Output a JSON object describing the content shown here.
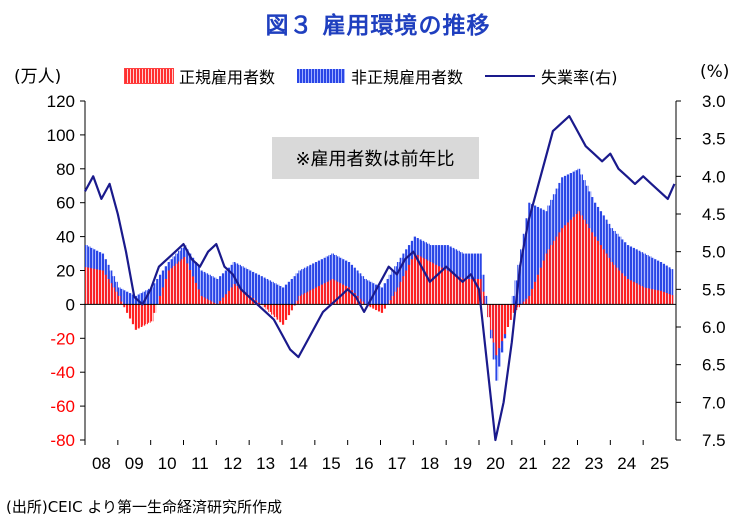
{
  "title": "図３ 雇用環境の推移",
  "source": "(出所)CEIC より第一生命経済研究所作成",
  "chart_data": {
    "type": "bar",
    "annotation": "※雇用者数は前年比",
    "y_left": {
      "unit_label": "(万人)",
      "min": -80,
      "max": 120,
      "ticks": [
        120,
        100,
        80,
        60,
        40,
        20,
        0,
        -20,
        -40,
        -60,
        -80
      ],
      "negative_color": "#ff0000"
    },
    "y_right": {
      "unit_label": "(%)",
      "min": 3.0,
      "max": 7.5,
      "inverted": true,
      "ticks": [
        "3.0",
        "3.5",
        "4.0",
        "4.5",
        "5.0",
        "5.5",
        "6.0",
        "6.5",
        "7.0",
        "7.5"
      ]
    },
    "x_ticks": [
      "08",
      "09",
      "10",
      "11",
      "12",
      "13",
      "14",
      "15",
      "16",
      "17",
      "18",
      "19",
      "20",
      "21",
      "22",
      "23",
      "24",
      "25"
    ],
    "legend": [
      "正規雇用者数",
      "非正規雇用者数",
      "失業率(右)"
    ],
    "colors": {
      "regular": "#ff2020",
      "non_regular": "#2a46e6",
      "unemployment": "#1a1a8c",
      "annotation_bg": "#d9d9d9",
      "title": "#1f3fbf"
    },
    "x_start": 2008.0,
    "x_end": 2026.0,
    "series": [
      {
        "name": "正規雇用者数",
        "axis": "left",
        "x": [
          2008.0,
          2008.5,
          2009.0,
          2009.5,
          2010.0,
          2010.5,
          2011.0,
          2011.5,
          2012.0,
          2012.5,
          2013.0,
          2013.5,
          2014.0,
          2014.5,
          2015.0,
          2015.5,
          2016.0,
          2016.5,
          2017.0,
          2017.5,
          2018.0,
          2018.5,
          2019.0,
          2019.5,
          2020.0,
          2020.5,
          2021.0,
          2021.5,
          2022.0,
          2022.5,
          2023.0,
          2023.5,
          2024.0,
          2024.5,
          2025.0,
          2025.5,
          2025.9
        ],
        "values": [
          22,
          20,
          5,
          -15,
          -10,
          20,
          28,
          5,
          0,
          12,
          5,
          -3,
          -12,
          5,
          10,
          15,
          10,
          0,
          -5,
          10,
          30,
          25,
          20,
          15,
          15,
          -30,
          -5,
          5,
          30,
          45,
          55,
          40,
          25,
          15,
          10,
          8,
          5
        ]
      },
      {
        "name": "非正規雇用者数",
        "axis": "left",
        "x": [
          2008.0,
          2008.5,
          2009.0,
          2009.5,
          2010.0,
          2010.5,
          2011.0,
          2011.5,
          2012.0,
          2012.5,
          2013.0,
          2013.5,
          2014.0,
          2014.5,
          2015.0,
          2015.5,
          2016.0,
          2016.5,
          2017.0,
          2017.5,
          2018.0,
          2018.5,
          2019.0,
          2019.5,
          2020.0,
          2020.5,
          2021.0,
          2021.5,
          2022.0,
          2022.5,
          2023.0,
          2023.5,
          2024.0,
          2024.5,
          2025.0,
          2025.5,
          2025.9
        ],
        "values": [
          35,
          30,
          10,
          5,
          10,
          25,
          35,
          20,
          15,
          25,
          20,
          15,
          10,
          20,
          25,
          30,
          25,
          15,
          10,
          25,
          40,
          35,
          35,
          30,
          30,
          -45,
          5,
          60,
          55,
          75,
          80,
          60,
          45,
          35,
          30,
          25,
          20
        ]
      },
      {
        "name": "失業率(右)",
        "axis": "right",
        "type": "line",
        "x": [
          2008.0,
          2008.25,
          2008.5,
          2008.75,
          2009.0,
          2009.25,
          2009.5,
          2009.75,
          2010.0,
          2010.25,
          2010.5,
          2010.75,
          2011.0,
          2011.25,
          2011.5,
          2011.75,
          2012.0,
          2012.25,
          2012.5,
          2012.75,
          2013.0,
          2013.25,
          2013.5,
          2013.75,
          2014.0,
          2014.25,
          2014.5,
          2014.75,
          2015.0,
          2015.25,
          2015.5,
          2015.75,
          2016.0,
          2016.25,
          2016.5,
          2016.75,
          2017.0,
          2017.25,
          2017.5,
          2017.75,
          2018.0,
          2018.25,
          2018.5,
          2018.75,
          2019.0,
          2019.25,
          2019.5,
          2019.75,
          2020.0,
          2020.25,
          2020.5,
          2020.75,
          2021.0,
          2021.25,
          2021.5,
          2021.75,
          2022.0,
          2022.25,
          2022.5,
          2022.75,
          2023.0,
          2023.25,
          2023.5,
          2023.75,
          2024.0,
          2024.25,
          2024.5,
          2024.75,
          2025.0,
          2025.25,
          2025.5,
          2025.75,
          2025.95
        ],
        "values": [
          4.2,
          4.0,
          4.3,
          4.1,
          4.5,
          5.0,
          5.6,
          5.7,
          5.5,
          5.2,
          5.1,
          5.0,
          4.9,
          5.1,
          5.2,
          5.0,
          4.9,
          5.2,
          5.3,
          5.5,
          5.6,
          5.7,
          5.8,
          5.9,
          6.1,
          6.3,
          6.4,
          6.2,
          6.0,
          5.8,
          5.7,
          5.6,
          5.5,
          5.6,
          5.8,
          5.6,
          5.4,
          5.2,
          5.3,
          5.1,
          5.0,
          5.2,
          5.4,
          5.3,
          5.2,
          5.3,
          5.4,
          5.3,
          5.5,
          6.5,
          7.5,
          7.0,
          6.2,
          5.2,
          4.6,
          4.2,
          3.8,
          3.4,
          3.3,
          3.2,
          3.4,
          3.6,
          3.7,
          3.8,
          3.7,
          3.9,
          4.0,
          4.1,
          4.0,
          4.1,
          4.2,
          4.3,
          4.1
        ]
      }
    ]
  }
}
